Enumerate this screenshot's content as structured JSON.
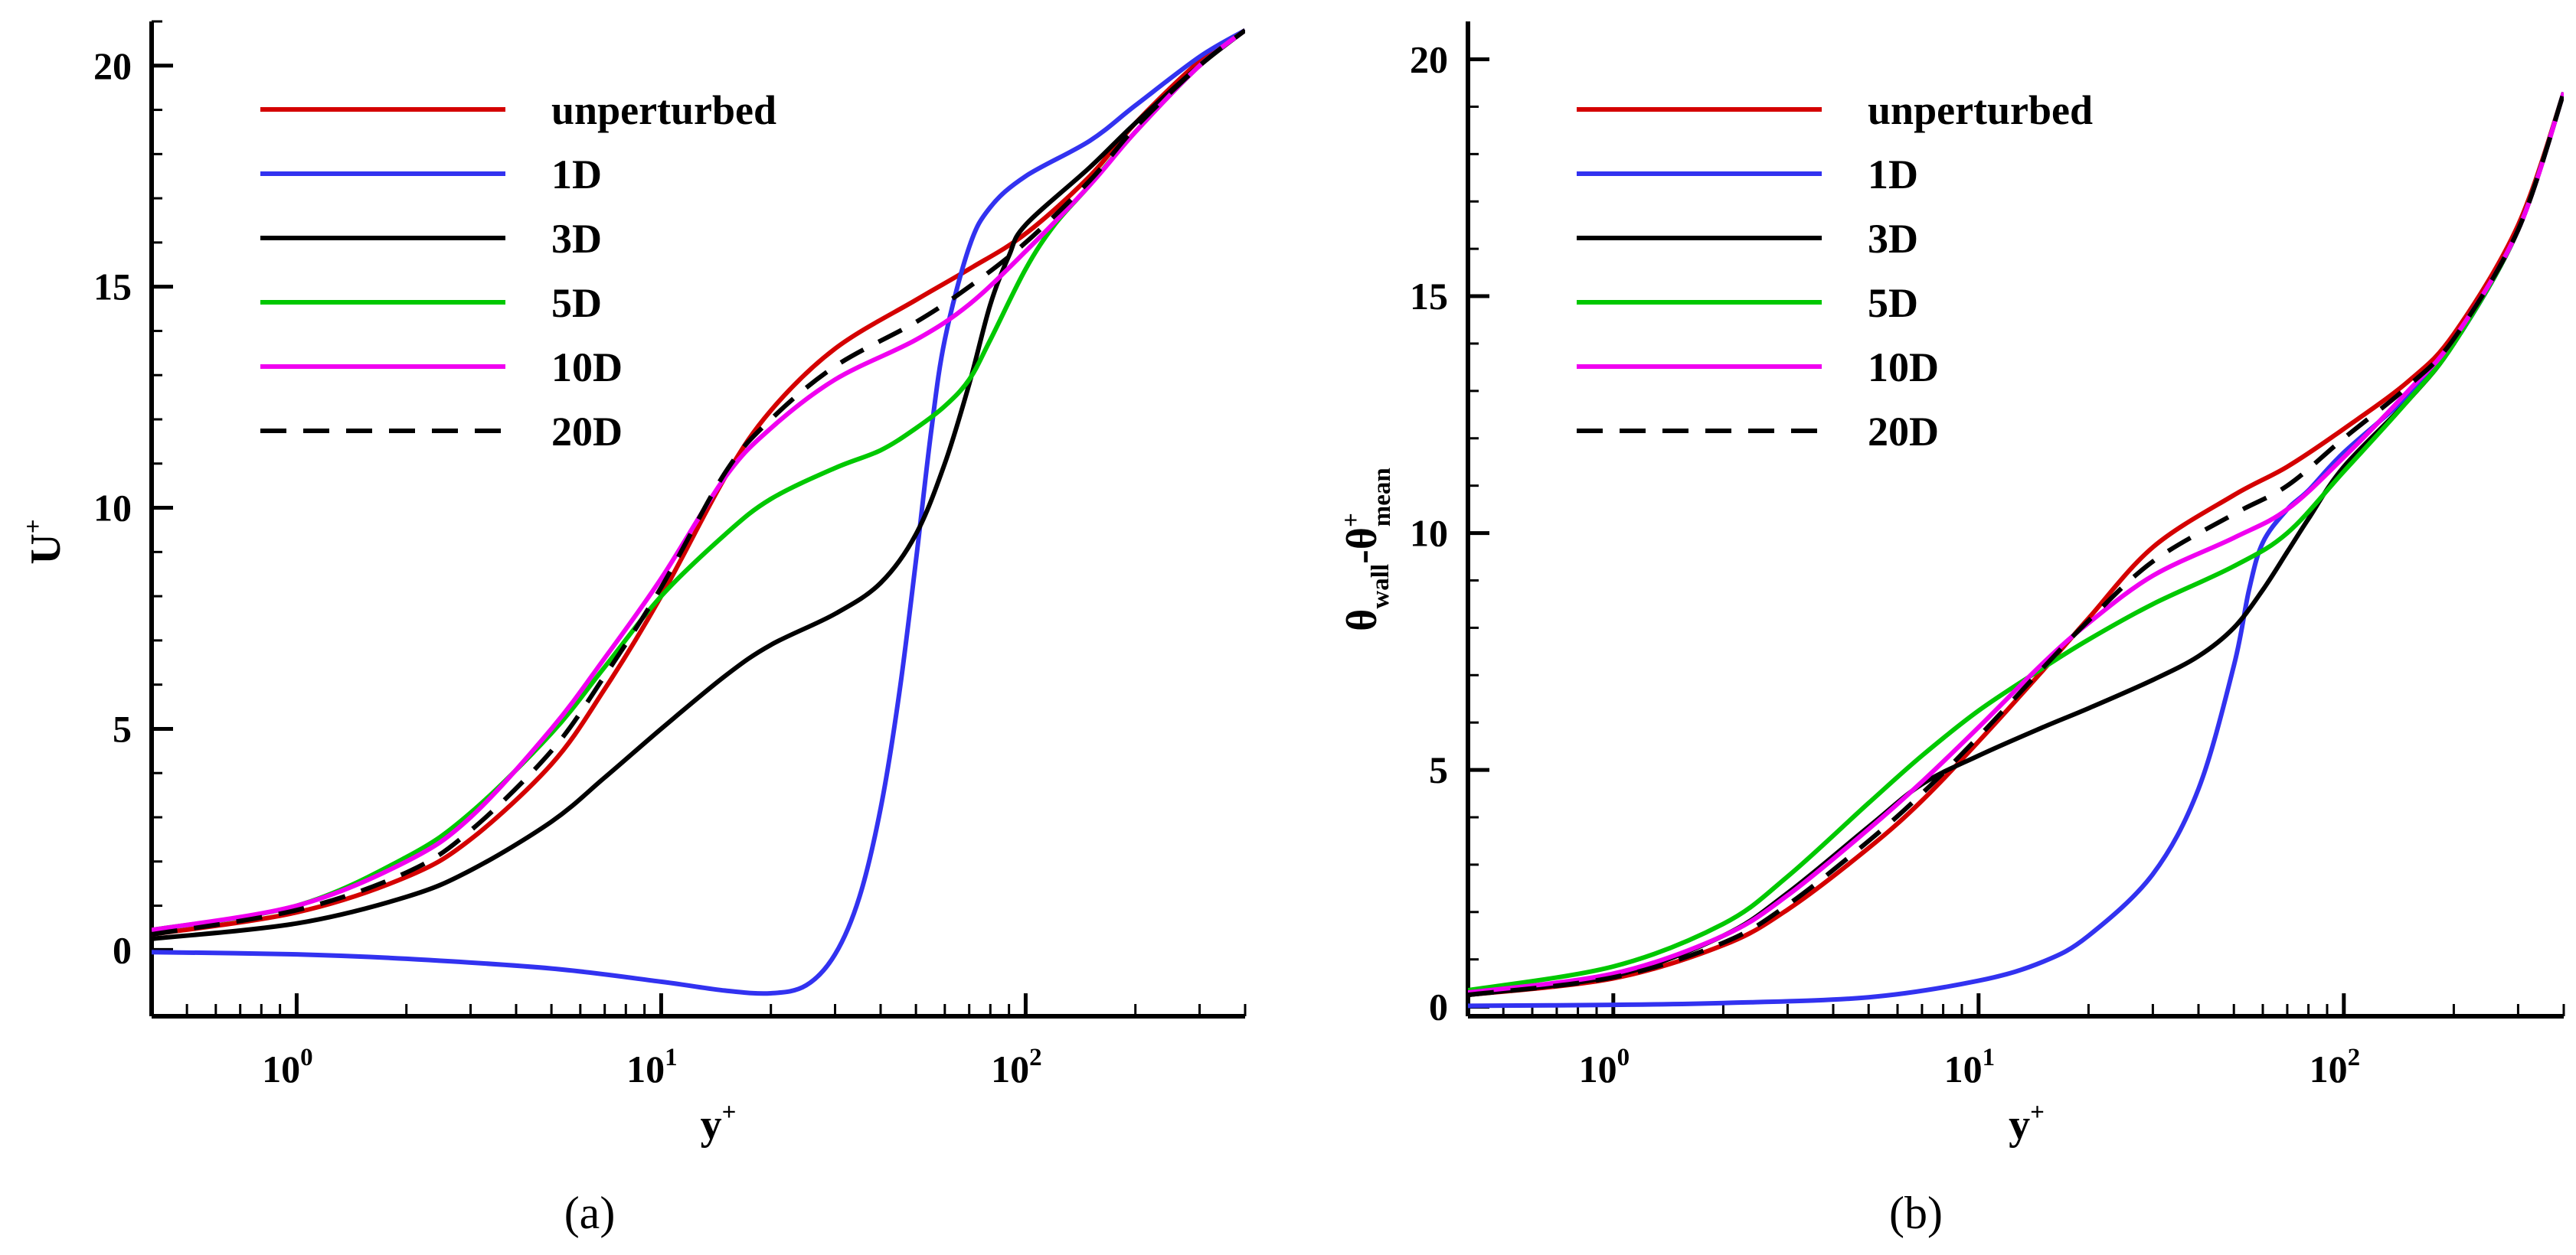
{
  "chart_data": [
    {
      "panel": "a",
      "type": "line",
      "caption": "(a)",
      "xlabel": "y",
      "xlabel_sup": "+",
      "ylabel": "U",
      "ylabel_sup": "+",
      "xscale": "log",
      "xlim": [
        0.4,
        400
      ],
      "ylim": [
        -1.5,
        21
      ],
      "yticks": [
        0,
        5,
        10,
        15,
        20
      ],
      "xticks": [
        {
          "value": 1,
          "base": "10",
          "exp": "0"
        },
        {
          "value": 10,
          "base": "10",
          "exp": "1"
        },
        {
          "value": 100,
          "base": "10",
          "exp": "2"
        }
      ],
      "legend_position": "top-left",
      "series": [
        {
          "name": "unperturbed",
          "color": "#d40000",
          "dash": "solid",
          "x": [
            0.4,
            1,
            2,
            3,
            5,
            7,
            10,
            15,
            20,
            30,
            50,
            70,
            100,
            150,
            200,
            300,
            400
          ],
          "y": [
            0.35,
            0.85,
            1.65,
            2.5,
            4.2,
            5.9,
            8.0,
            10.7,
            12.2,
            13.6,
            14.7,
            15.4,
            16.2,
            17.5,
            18.7,
            20.1,
            20.8
          ]
        },
        {
          "name": "1D",
          "color": "#3232f0",
          "dash": "solid",
          "x": [
            0.4,
            1,
            2,
            5,
            10,
            15,
            20,
            25,
            30,
            35,
            40,
            45,
            50,
            55,
            60,
            70,
            80,
            100,
            150,
            200,
            300,
            400
          ],
          "y": [
            -0.05,
            -0.1,
            -0.2,
            -0.42,
            -0.72,
            -0.92,
            -0.98,
            -0.8,
            -0.1,
            1.2,
            3.2,
            5.8,
            8.8,
            11.7,
            13.8,
            15.9,
            16.8,
            17.5,
            18.3,
            19.1,
            20.2,
            20.8
          ]
        },
        {
          "name": "3D",
          "color": "#000000",
          "dash": "solid",
          "x": [
            0.4,
            1,
            2,
            3,
            5,
            7,
            10,
            15,
            20,
            30,
            40,
            50,
            60,
            70,
            80,
            90,
            100,
            150,
            200,
            300,
            400
          ],
          "y": [
            0.25,
            0.6,
            1.2,
            1.8,
            2.9,
            3.9,
            5.0,
            6.2,
            6.9,
            7.6,
            8.3,
            9.4,
            11.0,
            12.8,
            14.6,
            15.7,
            16.4,
            17.7,
            18.7,
            20.0,
            20.8
          ]
        },
        {
          "name": "5D",
          "color": "#00c800",
          "dash": "solid",
          "x": [
            0.4,
            1,
            2,
            3,
            5,
            7,
            10,
            15,
            20,
            30,
            40,
            50,
            60,
            70,
            80,
            100,
            120,
            150,
            200,
            300,
            400
          ],
          "y": [
            0.45,
            1.0,
            2.1,
            3.1,
            4.9,
            6.4,
            8.0,
            9.4,
            10.2,
            10.9,
            11.3,
            11.8,
            12.3,
            12.9,
            13.8,
            15.4,
            16.4,
            17.3,
            18.5,
            20.0,
            20.8
          ]
        },
        {
          "name": "10D",
          "color": "#f000f0",
          "dash": "solid",
          "x": [
            0.4,
            1,
            2,
            3,
            5,
            7,
            10,
            15,
            20,
            30,
            50,
            70,
            100,
            150,
            200,
            300,
            400
          ],
          "y": [
            0.45,
            1.0,
            2.0,
            3.0,
            5.0,
            6.6,
            8.4,
            10.7,
            11.8,
            12.9,
            13.8,
            14.6,
            15.8,
            17.3,
            18.5,
            20.0,
            20.8
          ]
        },
        {
          "name": "20D",
          "color": "#000000",
          "dash": "dashed",
          "x": [
            0.4,
            1,
            2,
            3,
            5,
            7,
            10,
            15,
            20,
            30,
            50,
            70,
            100,
            150,
            200,
            300,
            400
          ],
          "y": [
            0.35,
            0.9,
            1.75,
            2.7,
            4.5,
            6.2,
            8.2,
            10.8,
            12.0,
            13.2,
            14.2,
            15.0,
            16.0,
            17.4,
            18.6,
            20.0,
            20.8
          ]
        }
      ]
    },
    {
      "panel": "b",
      "type": "line",
      "caption": "(b)",
      "xlabel": "y",
      "xlabel_sup": "+",
      "ylabel": "θ",
      "ylabel_sub1": "wall",
      "ylabel_mid": "-θ",
      "ylabel_sup2": "+",
      "ylabel_sub2": "mean",
      "xscale": "log",
      "xlim": [
        0.4,
        400
      ],
      "ylim": [
        -0.2,
        20.8
      ],
      "yticks": [
        0,
        5,
        10,
        15,
        20
      ],
      "xticks": [
        {
          "value": 1,
          "base": "10",
          "exp": "0"
        },
        {
          "value": 10,
          "base": "10",
          "exp": "1"
        },
        {
          "value": 100,
          "base": "10",
          "exp": "2"
        }
      ],
      "legend_position": "top-left",
      "series": [
        {
          "name": "unperturbed",
          "color": "#d40000",
          "dash": "solid",
          "x": [
            0.4,
            1,
            2,
            3,
            5,
            7,
            10,
            15,
            20,
            30,
            50,
            70,
            100,
            150,
            200,
            300,
            400
          ],
          "y": [
            0.25,
            0.6,
            1.3,
            2.05,
            3.35,
            4.35,
            5.6,
            7.1,
            8.2,
            9.7,
            10.8,
            11.4,
            12.2,
            13.2,
            14.2,
            16.5,
            19.3
          ]
        },
        {
          "name": "1D",
          "color": "#3232f0",
          "dash": "solid",
          "x": [
            0.4,
            1,
            2,
            5,
            10,
            15,
            20,
            30,
            40,
            50,
            55,
            60,
            70,
            80,
            100,
            150,
            200,
            300,
            400
          ],
          "y": [
            0.02,
            0.04,
            0.08,
            0.2,
            0.55,
            0.95,
            1.5,
            2.8,
            4.6,
            7.2,
            8.8,
            9.8,
            10.5,
            10.9,
            11.7,
            12.9,
            14.0,
            16.4,
            19.3
          ]
        },
        {
          "name": "3D",
          "color": "#000000",
          "dash": "solid",
          "x": [
            0.4,
            1,
            2,
            3,
            5,
            7,
            10,
            15,
            20,
            30,
            40,
            50,
            60,
            70,
            80,
            100,
            150,
            200,
            300,
            400
          ],
          "y": [
            0.25,
            0.65,
            1.5,
            2.4,
            3.8,
            4.7,
            5.3,
            5.9,
            6.3,
            6.9,
            7.4,
            8.0,
            8.8,
            9.6,
            10.3,
            11.4,
            12.8,
            14.0,
            16.4,
            19.3
          ]
        },
        {
          "name": "5D",
          "color": "#00c800",
          "dash": "solid",
          "x": [
            0.4,
            1,
            2,
            3,
            5,
            7,
            10,
            15,
            20,
            30,
            50,
            70,
            100,
            150,
            200,
            300,
            400
          ],
          "y": [
            0.35,
            0.85,
            1.75,
            2.75,
            4.3,
            5.3,
            6.25,
            7.15,
            7.75,
            8.5,
            9.3,
            10.0,
            11.3,
            12.8,
            14.0,
            16.4,
            19.3
          ]
        },
        {
          "name": "10D",
          "color": "#f000f0",
          "dash": "solid",
          "x": [
            0.4,
            1,
            2,
            3,
            5,
            7,
            10,
            15,
            20,
            30,
            50,
            70,
            100,
            150,
            200,
            300,
            400
          ],
          "y": [
            0.3,
            0.7,
            1.5,
            2.35,
            3.75,
            4.75,
            5.9,
            7.25,
            8.1,
            9.1,
            9.9,
            10.5,
            11.6,
            13.0,
            14.1,
            16.4,
            19.3
          ]
        },
        {
          "name": "20D",
          "color": "#000000",
          "dash": "dashed",
          "x": [
            0.4,
            1,
            2,
            3,
            5,
            7,
            10,
            15,
            20,
            30,
            50,
            70,
            100,
            150,
            200,
            300,
            400
          ],
          "y": [
            0.25,
            0.62,
            1.35,
            2.15,
            3.5,
            4.5,
            5.7,
            7.15,
            8.15,
            9.4,
            10.4,
            11.0,
            12.0,
            13.1,
            14.1,
            16.4,
            19.3
          ]
        }
      ]
    }
  ]
}
